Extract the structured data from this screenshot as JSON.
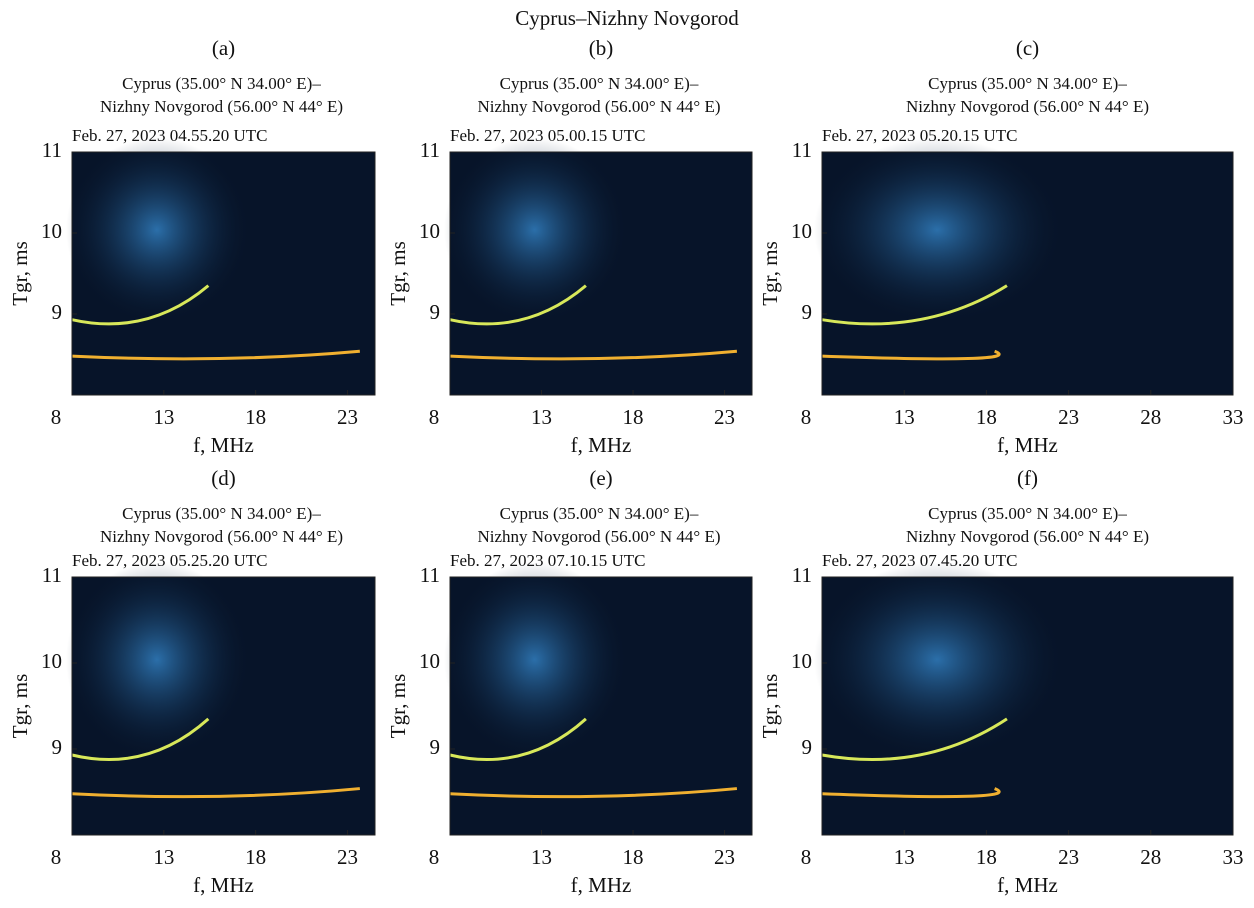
{
  "chart_data": [
    {
      "type": "ionogram",
      "suptitle": "Cyprus–Nizhny Novgorod",
      "label": "(a)",
      "subtitle": [
        "Cyprus (35.00° N 34.00° E)–",
        "Nizhny Novgorod (56.00° N 44° E)"
      ],
      "date": "Feb. 27, 2023   04.55.20 UTC",
      "xlabel": "f, MHz",
      "ylabel": "Tgr, ms",
      "xlim": [
        8,
        24.5
      ],
      "xticks": [
        8,
        13,
        18,
        23
      ],
      "ylim": [
        8,
        11
      ],
      "yticks": [
        9,
        10,
        11
      ]
    },
    {
      "type": "ionogram",
      "label": "(b)",
      "subtitle": [
        "Cyprus (35.00° N 34.00° E)–",
        "Nizhny Novgorod (56.00° N 44° E)"
      ],
      "date": "Feb. 27, 2023   05.00.15 UTC",
      "xlabel": "f, MHz",
      "ylabel": "Tgr, ms",
      "xlim": [
        8,
        24.5
      ],
      "xticks": [
        8,
        13,
        18,
        23
      ],
      "ylim": [
        8,
        11
      ],
      "yticks": [
        9,
        10,
        11
      ]
    },
    {
      "type": "ionogram",
      "label": "(c)",
      "subtitle": [
        "Cyprus (35.00° N 34.00° E)–",
        "Nizhny Novgorod (56.00° N 44° E)"
      ],
      "date": "Feb. 27, 2023   05.20.15 UTC",
      "xlabel": "f, MHz",
      "ylabel": "Tgr, ms",
      "xlim": [
        8,
        33
      ],
      "xticks": [
        8,
        13,
        18,
        23,
        28,
        33
      ],
      "ylim": [
        8,
        11
      ],
      "yticks": [
        9,
        10,
        11
      ]
    },
    {
      "type": "ionogram",
      "label": "(d)",
      "subtitle": [
        "Cyprus (35.00° N 34.00° E)–",
        "Nizhny Novgorod (56.00° N 44° E)"
      ],
      "date": "Feb. 27, 2023   05.25.20 UTC",
      "xlabel": "f, MHz",
      "ylabel": "Tgr, ms",
      "xlim": [
        8,
        24.5
      ],
      "xticks": [
        8,
        13,
        18,
        23
      ],
      "ylim": [
        8,
        11
      ],
      "yticks": [
        9,
        10,
        11
      ]
    },
    {
      "type": "ionogram",
      "label": "(e)",
      "subtitle": [
        "Cyprus (35.00° N 34.00° E)–",
        "Nizhny Novgorod (56.00° N 44° E)"
      ],
      "date": "Feb. 27, 2023   07.10.15 UTC",
      "xlabel": "f, MHz",
      "ylabel": "Tgr, ms",
      "xlim": [
        8,
        24.5
      ],
      "xticks": [
        8,
        13,
        18,
        23
      ],
      "ylim": [
        8,
        11
      ],
      "yticks": [
        9,
        10,
        11
      ]
    },
    {
      "type": "ionogram",
      "label": "(f)",
      "subtitle": [
        "Cyprus (35.00° N 34.00° E)–",
        "Nizhny Novgorod (56.00° N 44° E)"
      ],
      "date": "Feb. 27, 2023   07.45.20 UTC",
      "xlabel": "f, MHz",
      "ylabel": "Tgr, ms",
      "xlim": [
        8,
        33
      ],
      "xticks": [
        8,
        13,
        18,
        23,
        28,
        33
      ],
      "ylim": [
        8,
        11
      ],
      "yticks": [
        9,
        10,
        11
      ]
    }
  ]
}
